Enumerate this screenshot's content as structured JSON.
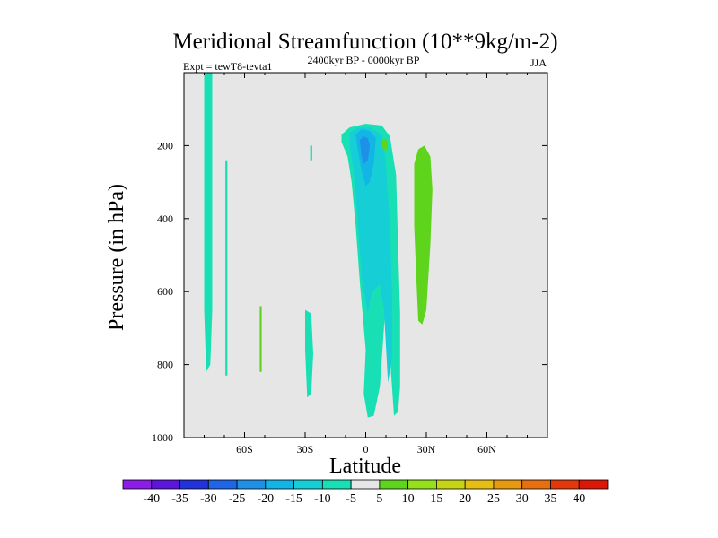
{
  "chart_data": {
    "type": "contour",
    "title": "Meridional Streamfunction (10**9kg/m-2)",
    "subtitle_left": "Expt = tewT8-tevta1",
    "subtitle_center": "2400kyr BP - 0000kyr BP",
    "subtitle_right": "JJA",
    "xlabel": "Latitude",
    "ylabel": "Pressure (in hPa)",
    "xlim": [
      -90,
      90
    ],
    "ylim": [
      1000,
      0
    ],
    "x_ticks": [
      {
        "value": -60,
        "label": "60S"
      },
      {
        "value": -30,
        "label": "30S"
      },
      {
        "value": 0,
        "label": "0"
      },
      {
        "value": 30,
        "label": "30N"
      },
      {
        "value": 60,
        "label": "60N"
      }
    ],
    "y_ticks": [
      {
        "value": 200,
        "label": "200"
      },
      {
        "value": 400,
        "label": "400"
      },
      {
        "value": 600,
        "label": "600"
      },
      {
        "value": 800,
        "label": "800"
      },
      {
        "value": 1000,
        "label": "1000"
      }
    ],
    "background_color": "#e6e6e6",
    "levels": [
      -40,
      -35,
      -30,
      -25,
      -20,
      -15,
      -10,
      -5,
      5,
      10,
      15,
      20,
      25,
      30,
      35,
      40
    ],
    "colorbar_colors": [
      "#8a1de6",
      "#5a16d9",
      "#2233d9",
      "#1f66e6",
      "#1e90e6",
      "#12b5e6",
      "#16cfd6",
      "#18e0b4",
      "#e6e6e6",
      "#5fd41c",
      "#94e01a",
      "#c6d416",
      "#e6be14",
      "#e69a12",
      "#e6700f",
      "#e3380c",
      "#d91808"
    ],
    "regions": [
      {
        "name": "band-80s",
        "level_color": "#18e0b4",
        "points": [
          [
            -80,
            0
          ],
          [
            -76,
            0
          ],
          [
            -76,
            650
          ],
          [
            -77,
            800
          ],
          [
            -79,
            820
          ],
          [
            -80,
            650
          ]
        ]
      },
      {
        "name": "thin-70s",
        "level_color": "#18e0b4",
        "points": [
          [
            -69.5,
            240
          ],
          [
            -68.5,
            240
          ],
          [
            -68.5,
            830
          ],
          [
            -69.5,
            830
          ]
        ]
      },
      {
        "name": "streak-53s",
        "level_color": "#5fd41c",
        "points": [
          [
            -52.5,
            640
          ],
          [
            -51.5,
            640
          ],
          [
            -51.5,
            820
          ],
          [
            -52.5,
            820
          ]
        ]
      },
      {
        "name": "blob-27s-upper",
        "level_color": "#18e0b4",
        "points": [
          [
            -27.5,
            200
          ],
          [
            -26.5,
            200
          ],
          [
            -26.5,
            240
          ],
          [
            -27.5,
            240
          ]
        ]
      },
      {
        "name": "blob-30s-lower",
        "level_color": "#18e0b4",
        "points": [
          [
            -30,
            650
          ],
          [
            -27,
            660
          ],
          [
            -26,
            770
          ],
          [
            -27,
            880
          ],
          [
            -29,
            890
          ],
          [
            -30,
            760
          ]
        ]
      },
      {
        "name": "cell-equator-outer",
        "level_color": "#18e0b4",
        "points": [
          [
            -12,
            170
          ],
          [
            -8,
            150
          ],
          [
            0,
            140
          ],
          [
            8,
            145
          ],
          [
            12,
            175
          ],
          [
            15,
            280
          ],
          [
            16,
            470
          ],
          [
            17,
            660
          ],
          [
            17,
            860
          ],
          [
            16,
            930
          ],
          [
            14,
            940
          ],
          [
            12,
            780
          ],
          [
            10,
            620
          ],
          [
            9,
            700
          ],
          [
            7,
            860
          ],
          [
            4,
            940
          ],
          [
            1,
            945
          ],
          [
            -1,
            880
          ],
          [
            0,
            760
          ],
          [
            -3,
            570
          ],
          [
            -5,
            420
          ],
          [
            -7,
            300
          ],
          [
            -9,
            230
          ],
          [
            -12,
            190
          ]
        ]
      },
      {
        "name": "cell-equator-mid",
        "level_color": "#16cfd6",
        "points": [
          [
            -8,
            165
          ],
          [
            -4,
            150
          ],
          [
            2,
            150
          ],
          [
            8,
            170
          ],
          [
            10,
            250
          ],
          [
            12,
            420
          ],
          [
            13,
            600
          ],
          [
            13,
            780
          ],
          [
            11,
            850
          ],
          [
            9,
            650
          ],
          [
            7,
            580
          ],
          [
            3,
            600
          ],
          [
            1,
            660
          ],
          [
            -2,
            560
          ],
          [
            -4,
            400
          ],
          [
            -6,
            270
          ],
          [
            -8,
            200
          ]
        ]
      },
      {
        "name": "cell-equator-inner",
        "level_color": "#12b5e6",
        "points": [
          [
            -5,
            170
          ],
          [
            -2,
            155
          ],
          [
            2,
            160
          ],
          [
            5,
            180
          ],
          [
            4,
            250
          ],
          [
            2,
            300
          ],
          [
            0,
            310
          ],
          [
            -2,
            270
          ],
          [
            -4,
            210
          ]
        ]
      },
      {
        "name": "cell-equator-core",
        "level_color": "#1e90e6",
        "points": [
          [
            -3,
            185
          ],
          [
            -1,
            175
          ],
          [
            1,
            180
          ],
          [
            2,
            200
          ],
          [
            1,
            240
          ],
          [
            -1,
            250
          ],
          [
            -2,
            230
          ]
        ]
      },
      {
        "name": "patch-8n",
        "level_color": "#5fd41c",
        "points": [
          [
            8,
            185
          ],
          [
            10,
            180
          ],
          [
            11,
            200
          ],
          [
            10,
            215
          ],
          [
            8,
            205
          ]
        ]
      },
      {
        "name": "column-30n",
        "level_color": "#5fd41c",
        "points": [
          [
            24,
            250
          ],
          [
            26,
            210
          ],
          [
            29,
            200
          ],
          [
            32,
            230
          ],
          [
            33,
            320
          ],
          [
            32,
            470
          ],
          [
            30,
            650
          ],
          [
            28,
            690
          ],
          [
            26,
            680
          ],
          [
            25,
            560
          ],
          [
            24,
            420
          ]
        ]
      }
    ]
  }
}
